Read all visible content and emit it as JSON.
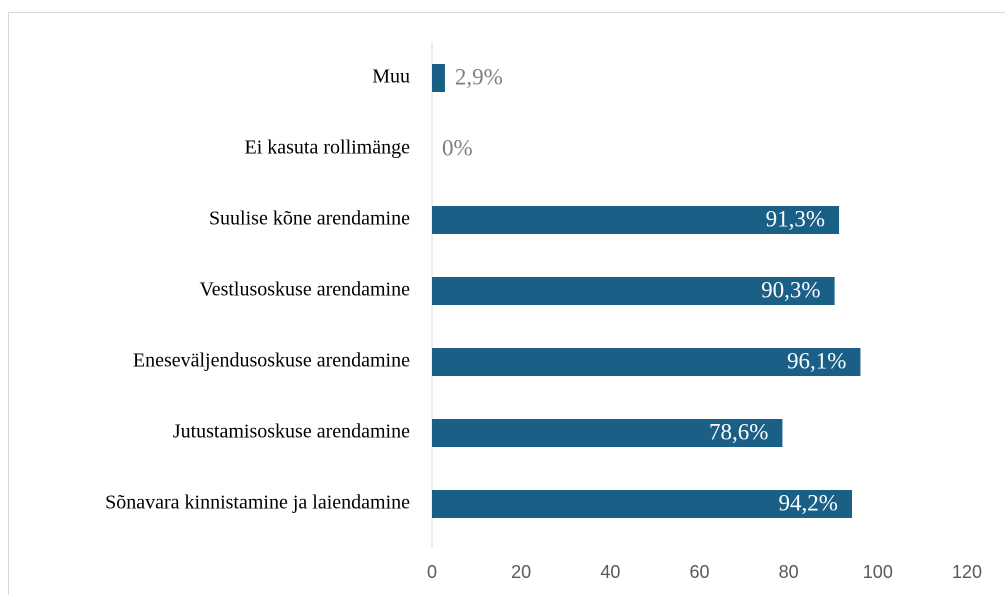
{
  "chart_data": {
    "type": "bar",
    "orientation": "horizontal",
    "categories": [
      "Muu",
      "Ei kasuta rollimänge",
      "Suulise kõne arendamine",
      "Vestlusoskuse arendamine",
      "Eneseväljendusoskuse arendamine",
      "Jutustamisoskuse arendamine",
      "Sõnavara kinnistamine ja laiendamine"
    ],
    "values": [
      2.9,
      0,
      91.3,
      90.3,
      96.1,
      78.6,
      94.2
    ],
    "value_labels": [
      "2,9%",
      "0%",
      "91,3%",
      "90,3%",
      "96,1%",
      "78,6%",
      "94,2%"
    ],
    "color": "#1a5f86",
    "xlim": [
      0,
      120
    ],
    "xticks": [
      0,
      20,
      40,
      60,
      80,
      100,
      120
    ]
  }
}
